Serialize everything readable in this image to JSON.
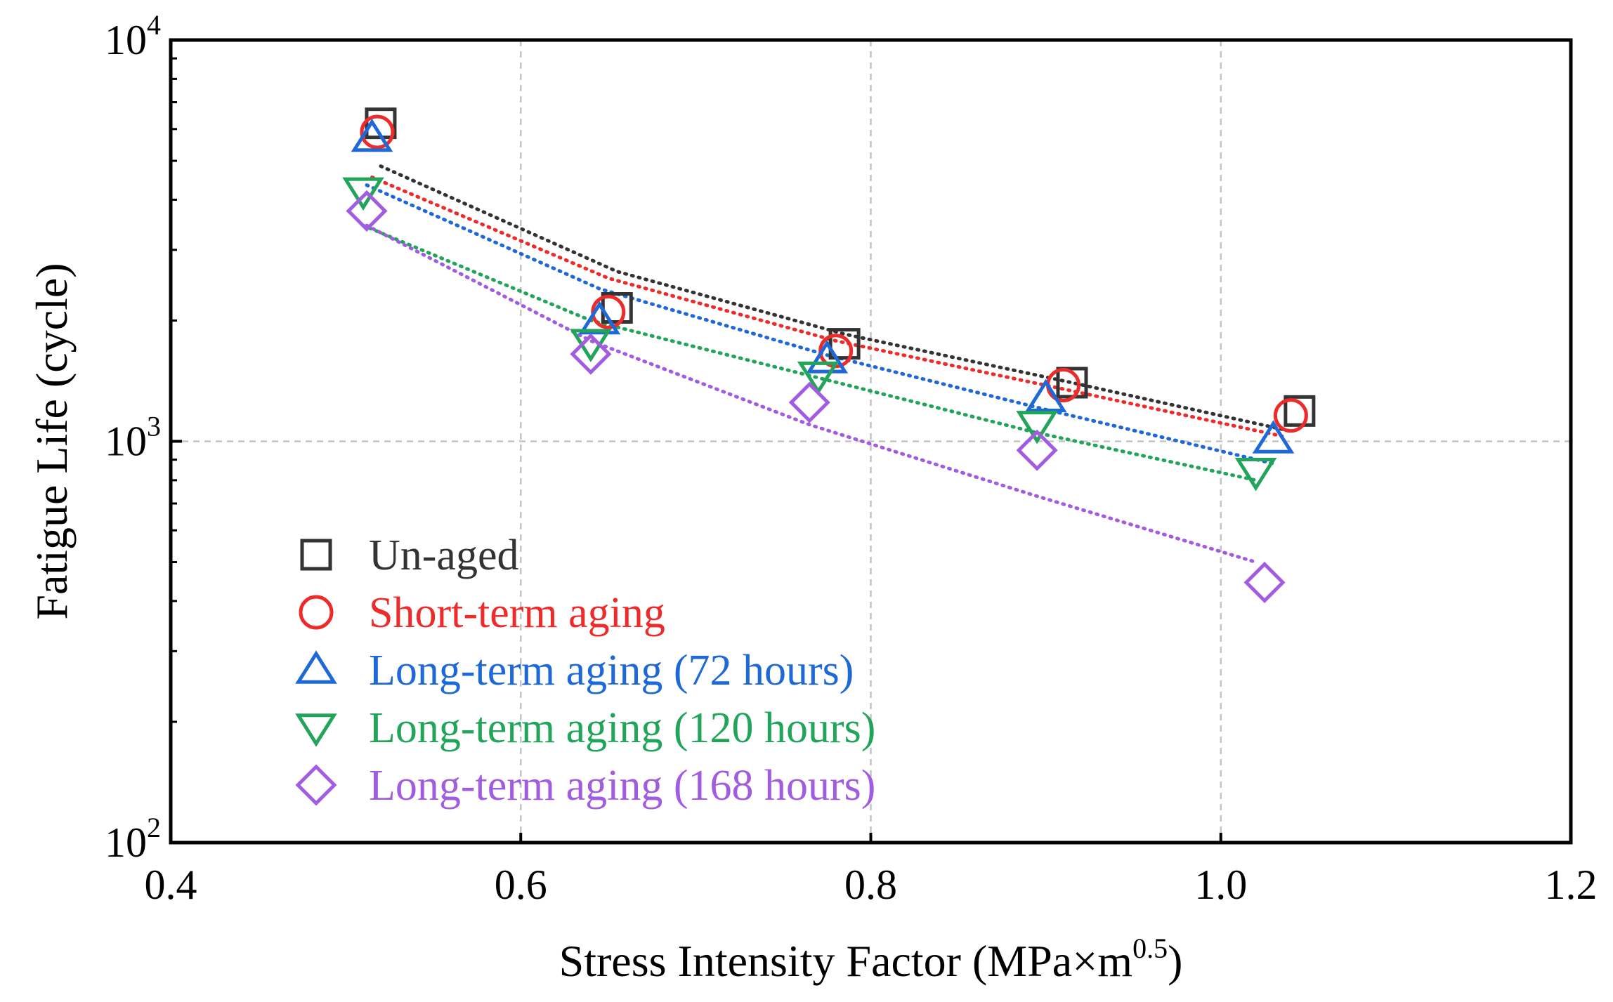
{
  "chart_data": {
    "type": "scatter",
    "title": "",
    "xlabel": "Stress Intensity Factor (MPa×m",
    "xlabel_sup": "0.5",
    "xlabel_end": ")",
    "ylabel": "Fatigue Life (cycle)",
    "xlim": [
      0.4,
      1.2
    ],
    "ylim": [
      100,
      10000
    ],
    "yscale": "log",
    "grid": true,
    "legend_position": "bottom-left",
    "x_ticks": [
      "0.4",
      "0.6",
      "0.8",
      "1.0",
      "1.2"
    ],
    "y_ticks": [
      {
        "base": "10",
        "exp": "2",
        "value": 100
      },
      {
        "base": "10",
        "exp": "3",
        "value": 1000
      },
      {
        "base": "10",
        "exp": "4",
        "value": 10000
      }
    ],
    "series": [
      {
        "name": "Un-aged",
        "color": "#333333",
        "marker": "square",
        "points": [
          [
            0.52,
            6200
          ],
          [
            0.655,
            2150
          ],
          [
            0.785,
            1750
          ],
          [
            0.915,
            1400
          ],
          [
            1.045,
            1190
          ]
        ],
        "fit": [
          [
            0.52,
            4850
          ],
          [
            0.655,
            2650
          ],
          [
            0.785,
            1850
          ],
          [
            0.915,
            1400
          ],
          [
            1.04,
            1060
          ]
        ]
      },
      {
        "name": "Short-term aging",
        "color": "#ee2b2b",
        "marker": "circle",
        "points": [
          [
            0.518,
            5900
          ],
          [
            0.65,
            2100
          ],
          [
            0.78,
            1680
          ],
          [
            0.91,
            1380
          ],
          [
            1.04,
            1160
          ]
        ],
        "fit": [
          [
            0.515,
            4550
          ],
          [
            0.65,
            2550
          ],
          [
            0.78,
            1780
          ],
          [
            0.91,
            1350
          ],
          [
            1.035,
            1030
          ]
        ]
      },
      {
        "name": "Long-term aging (72 hours)",
        "color": "#1e68d8",
        "marker": "triangle-up",
        "points": [
          [
            0.515,
            5700
          ],
          [
            0.645,
            2000
          ],
          [
            0.775,
            1600
          ],
          [
            0.9,
            1280
          ],
          [
            1.03,
            1010
          ]
        ],
        "fit": [
          [
            0.512,
            4350
          ],
          [
            0.645,
            2400
          ],
          [
            0.775,
            1640
          ],
          [
            0.9,
            1200
          ],
          [
            1.03,
            880
          ]
        ]
      },
      {
        "name": "Long-term aging (120 hours)",
        "color": "#22a55a",
        "marker": "triangle-down",
        "points": [
          [
            0.51,
            4200
          ],
          [
            0.64,
            1760
          ],
          [
            0.77,
            1460
          ],
          [
            0.895,
            1100
          ],
          [
            1.02,
            840
          ]
        ],
        "fit": [
          [
            0.51,
            3450
          ],
          [
            0.64,
            2000
          ],
          [
            0.77,
            1440
          ],
          [
            0.895,
            1050
          ],
          [
            1.02,
            800
          ]
        ]
      },
      {
        "name": "Long-term aging (168 hours)",
        "color": "#a25ce0",
        "marker": "diamond",
        "points": [
          [
            0.512,
            3750
          ],
          [
            0.64,
            1650
          ],
          [
            0.765,
            1250
          ],
          [
            0.895,
            950
          ],
          [
            1.025,
            445
          ]
        ],
        "fit": [
          [
            0.512,
            3450
          ],
          [
            0.64,
            1780
          ],
          [
            0.765,
            1100
          ],
          [
            0.895,
            730
          ],
          [
            1.02,
            500
          ]
        ]
      }
    ]
  }
}
